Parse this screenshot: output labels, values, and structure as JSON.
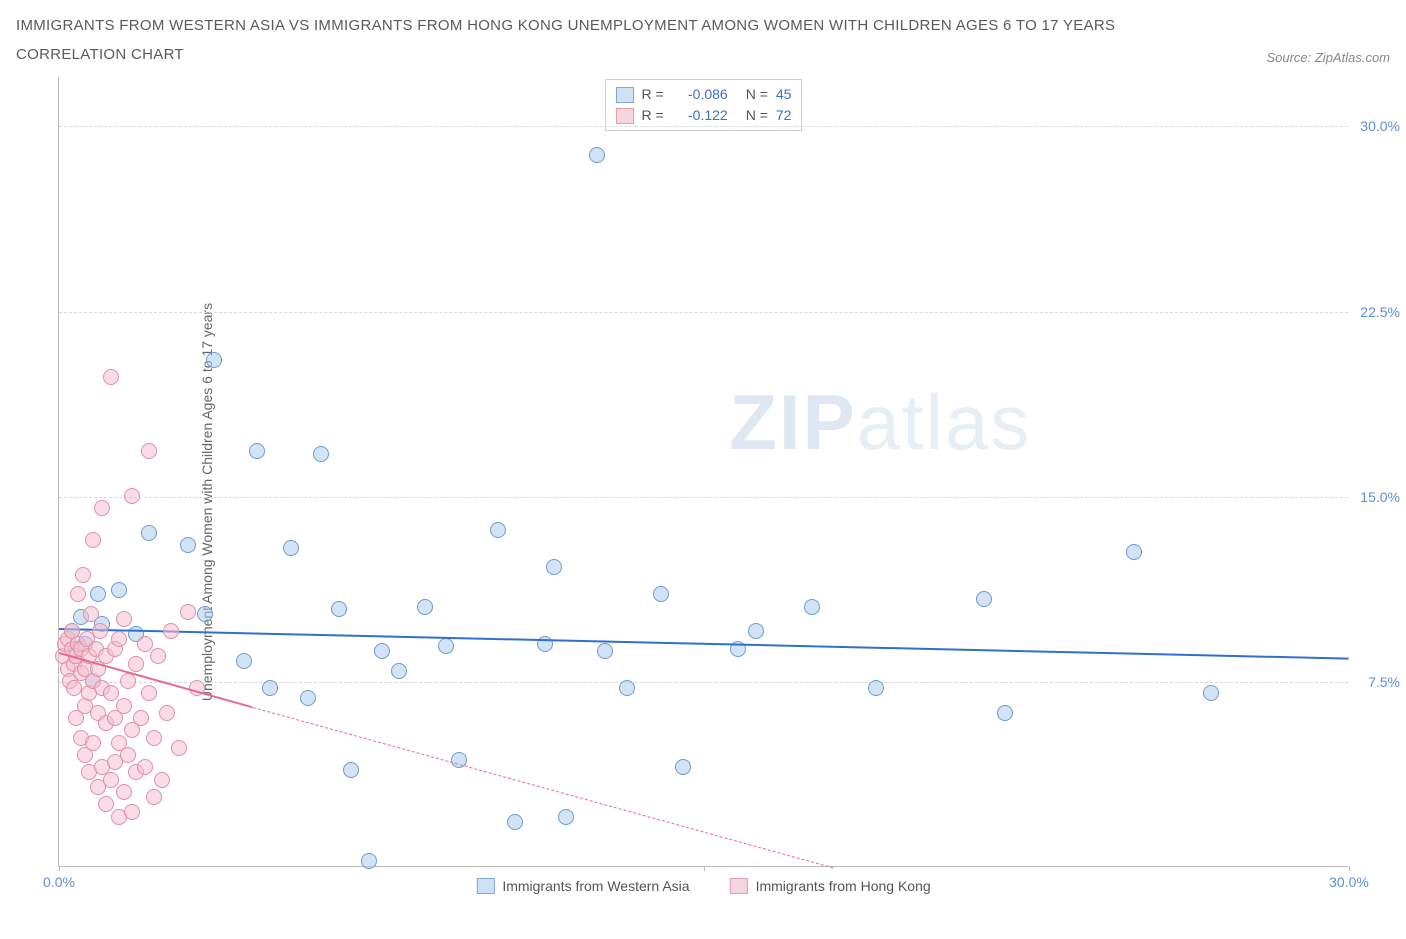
{
  "header": {
    "title": "IMMIGRANTS FROM WESTERN ASIA VS IMMIGRANTS FROM HONG KONG UNEMPLOYMENT AMONG WOMEN WITH CHILDREN AGES 6 TO 17 YEARS CORRELATION CHART",
    "source": "Source: ZipAtlas.com"
  },
  "chart": {
    "type": "scatter",
    "ylabel": "Unemployment Among Women with Children Ages 6 to 17 years",
    "xlim": [
      0,
      30
    ],
    "ylim": [
      0,
      32
    ],
    "ytick_values": [
      7.5,
      15.0,
      22.5,
      30.0
    ],
    "ytick_labels": [
      "7.5%",
      "15.0%",
      "22.5%",
      "30.0%"
    ],
    "ytick_color": "#5b8fd6",
    "xtick_values": [
      0,
      15,
      30
    ],
    "xtick_labels": [
      "0.0%",
      "",
      "30.0%"
    ],
    "xtick_color": "#5b8fd6",
    "grid_color": "#d8d8d8",
    "background_color": "#ffffff",
    "watermark": {
      "prefix": "ZIP",
      "suffix": "atlas"
    },
    "legend_top": {
      "rows": [
        {
          "swatch_fill": "#cfe0f4",
          "swatch_border": "#7fa8d8",
          "r_label": "R =",
          "r_value": "-0.086",
          "n_label": "N =",
          "n_value": "45",
          "value_color": "#3a6fc4"
        },
        {
          "swatch_fill": "#f6d6dd",
          "swatch_border": "#e59bb0",
          "r_label": "R =",
          "r_value": "-0.122",
          "n_label": "N =",
          "n_value": "72",
          "value_color": "#3a6fc4"
        }
      ]
    },
    "legend_bottom": {
      "items": [
        {
          "swatch_fill": "#cfe0f4",
          "swatch_border": "#7fa8d8",
          "label": "Immigrants from Western Asia"
        },
        {
          "swatch_fill": "#f6d6dd",
          "swatch_border": "#e59bb0",
          "label": "Immigrants from Hong Kong"
        }
      ]
    },
    "series": [
      {
        "name": "western_asia",
        "marker_fill": "rgba(173,204,238,0.55)",
        "marker_border": "#6d9bd1",
        "trend_color": "#2e6fd0",
        "trend": {
          "x1": 0,
          "y1": 9.7,
          "x2": 30,
          "y2": 8.5
        },
        "points": [
          [
            0.3,
            9.5
          ],
          [
            0.4,
            8.8
          ],
          [
            0.5,
            10.1
          ],
          [
            0.6,
            9.0
          ],
          [
            0.8,
            7.5
          ],
          [
            0.9,
            11.0
          ],
          [
            1.0,
            9.8
          ],
          [
            1.4,
            11.2
          ],
          [
            1.8,
            9.4
          ],
          [
            2.1,
            13.5
          ],
          [
            3.0,
            13.0
          ],
          [
            3.4,
            10.2
          ],
          [
            3.6,
            20.5
          ],
          [
            4.3,
            8.3
          ],
          [
            4.6,
            16.8
          ],
          [
            4.9,
            7.2
          ],
          [
            5.4,
            12.9
          ],
          [
            5.8,
            6.8
          ],
          [
            6.1,
            16.7
          ],
          [
            6.5,
            10.4
          ],
          [
            6.8,
            3.9
          ],
          [
            7.2,
            0.2
          ],
          [
            7.5,
            8.7
          ],
          [
            7.9,
            7.9
          ],
          [
            8.5,
            10.5
          ],
          [
            9.0,
            8.9
          ],
          [
            9.3,
            4.3
          ],
          [
            10.2,
            13.6
          ],
          [
            10.6,
            1.8
          ],
          [
            11.3,
            9.0
          ],
          [
            11.5,
            12.1
          ],
          [
            11.8,
            2.0
          ],
          [
            12.5,
            28.8
          ],
          [
            12.7,
            8.7
          ],
          [
            13.2,
            7.2
          ],
          [
            14.0,
            11.0
          ],
          [
            14.5,
            4.0
          ],
          [
            15.8,
            8.8
          ],
          [
            16.2,
            9.5
          ],
          [
            17.5,
            10.5
          ],
          [
            19.0,
            7.2
          ],
          [
            21.5,
            10.8
          ],
          [
            22.0,
            6.2
          ],
          [
            25.0,
            12.7
          ],
          [
            26.8,
            7.0
          ]
        ]
      },
      {
        "name": "hong_kong",
        "marker_fill": "rgba(244,192,206,0.55)",
        "marker_border": "#e08fa8",
        "trend_color": "#e86b8f",
        "trend": {
          "x1": 0,
          "y1": 8.7,
          "x2": 4.5,
          "y2": 6.5
        },
        "trend_dash": {
          "x1": 4.5,
          "y1": 6.5,
          "x2": 18,
          "y2": 0
        },
        "points": [
          [
            0.1,
            8.5
          ],
          [
            0.15,
            9.0
          ],
          [
            0.2,
            8.0
          ],
          [
            0.2,
            9.2
          ],
          [
            0.25,
            7.5
          ],
          [
            0.3,
            8.8
          ],
          [
            0.3,
            9.5
          ],
          [
            0.35,
            7.2
          ],
          [
            0.35,
            8.2
          ],
          [
            0.4,
            6.0
          ],
          [
            0.4,
            8.5
          ],
          [
            0.45,
            9.0
          ],
          [
            0.45,
            11.0
          ],
          [
            0.5,
            5.2
          ],
          [
            0.5,
            7.8
          ],
          [
            0.5,
            8.8
          ],
          [
            0.55,
            11.8
          ],
          [
            0.6,
            4.5
          ],
          [
            0.6,
            6.5
          ],
          [
            0.6,
            8.0
          ],
          [
            0.65,
            9.2
          ],
          [
            0.7,
            3.8
          ],
          [
            0.7,
            7.0
          ],
          [
            0.7,
            8.5
          ],
          [
            0.75,
            10.2
          ],
          [
            0.8,
            5.0
          ],
          [
            0.8,
            7.5
          ],
          [
            0.8,
            13.2
          ],
          [
            0.85,
            8.8
          ],
          [
            0.9,
            3.2
          ],
          [
            0.9,
            6.2
          ],
          [
            0.9,
            8.0
          ],
          [
            0.95,
            9.5
          ],
          [
            1.0,
            4.0
          ],
          [
            1.0,
            7.2
          ],
          [
            1.0,
            14.5
          ],
          [
            1.1,
            2.5
          ],
          [
            1.1,
            5.8
          ],
          [
            1.1,
            8.5
          ],
          [
            1.2,
            3.5
          ],
          [
            1.2,
            7.0
          ],
          [
            1.2,
            19.8
          ],
          [
            1.3,
            4.2
          ],
          [
            1.3,
            6.0
          ],
          [
            1.3,
            8.8
          ],
          [
            1.4,
            2.0
          ],
          [
            1.4,
            5.0
          ],
          [
            1.4,
            9.2
          ],
          [
            1.5,
            3.0
          ],
          [
            1.5,
            6.5
          ],
          [
            1.5,
            10.0
          ],
          [
            1.6,
            4.5
          ],
          [
            1.6,
            7.5
          ],
          [
            1.7,
            2.2
          ],
          [
            1.7,
            5.5
          ],
          [
            1.7,
            15.0
          ],
          [
            1.8,
            3.8
          ],
          [
            1.8,
            8.2
          ],
          [
            1.9,
            6.0
          ],
          [
            2.0,
            4.0
          ],
          [
            2.0,
            9.0
          ],
          [
            2.1,
            7.0
          ],
          [
            2.1,
            16.8
          ],
          [
            2.2,
            2.8
          ],
          [
            2.2,
            5.2
          ],
          [
            2.3,
            8.5
          ],
          [
            2.4,
            3.5
          ],
          [
            2.5,
            6.2
          ],
          [
            2.6,
            9.5
          ],
          [
            2.8,
            4.8
          ],
          [
            3.0,
            10.3
          ],
          [
            3.2,
            7.2
          ]
        ]
      }
    ]
  }
}
